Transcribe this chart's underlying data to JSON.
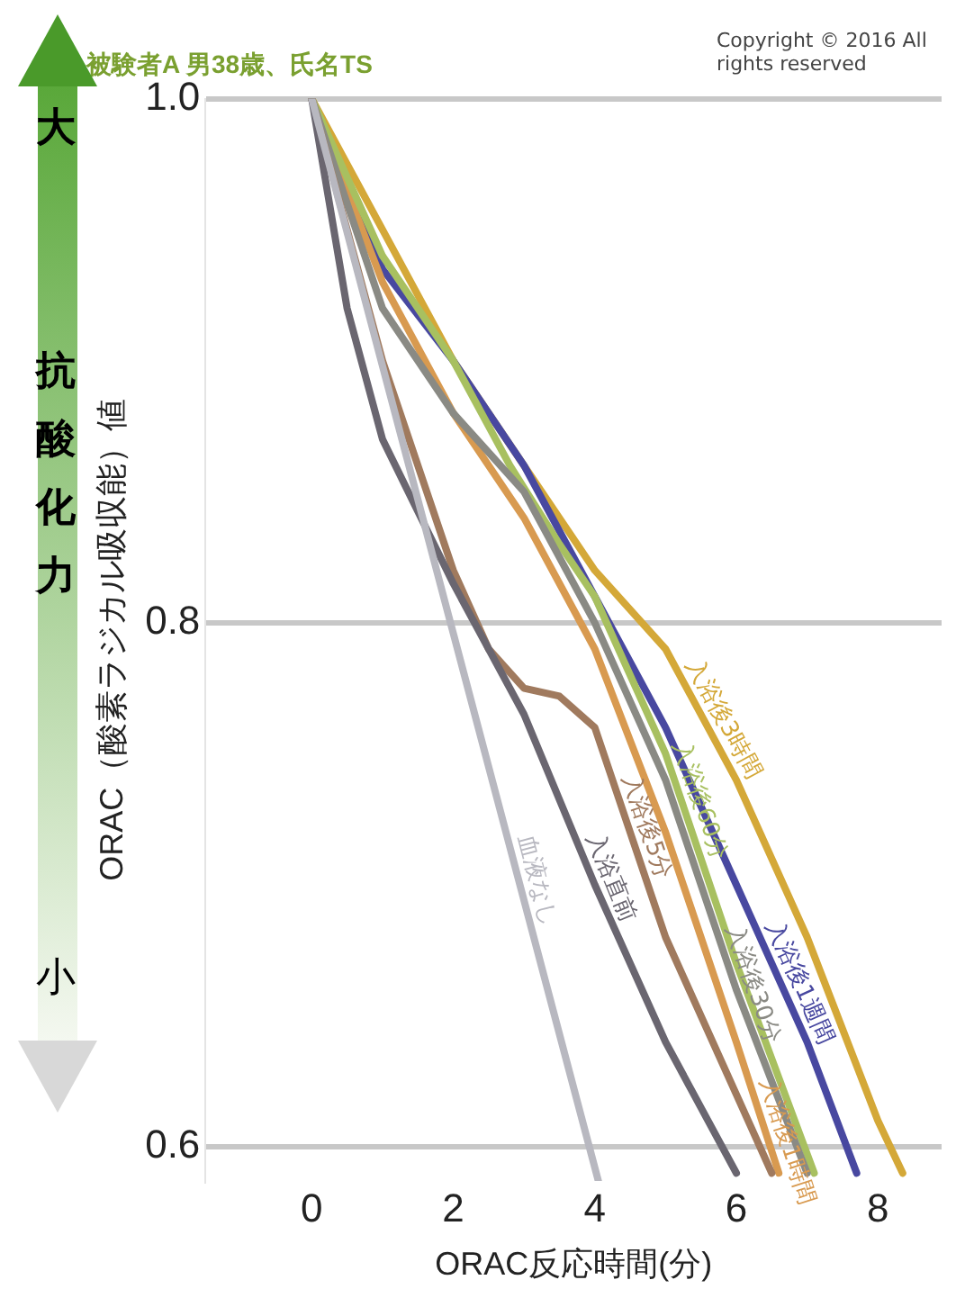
{
  "chart_data": {
    "type": "line",
    "title": "被験者A 男38歳、氏名TS",
    "xlabel": "ORAC反応時間(分)",
    "ylabel": "ORAC（酸素ラジカル吸収能）値",
    "annotations": [
      "Copyright © 2016 All rights reserved",
      "大",
      "抗酸化力",
      "小"
    ],
    "xlim": [
      -1.5,
      8.9
    ],
    "xticks": [
      0,
      2,
      4,
      6,
      8
    ],
    "ylim": [
      0.587,
      1.0
    ],
    "yticks": [
      {
        "value": 0.6,
        "label": "0.6"
      },
      {
        "value": 0.8,
        "label": "0.8"
      },
      {
        "value": 1,
        "label": "1.0"
      }
    ],
    "grid": "y",
    "legend": false,
    "marker": "none",
    "line_style": "solid",
    "series": [
      {
        "name": "血液なし",
        "color": "#b8b8c0",
        "x": [
          0,
          2,
          4.05
        ],
        "values": [
          1.0,
          0.796,
          0.587
        ]
      },
      {
        "name": "入浴直前",
        "color": "#6a6670",
        "x": [
          0,
          0.5,
          1,
          2,
          3,
          4,
          5,
          6
        ],
        "values": [
          1.0,
          0.92,
          0.87,
          0.815,
          0.765,
          0.7,
          0.64,
          0.59
        ]
      },
      {
        "name": "入浴後5分",
        "color": "#a07a5e",
        "x": [
          0,
          1,
          2,
          2.5,
          3,
          3.5,
          4,
          5,
          6,
          6.5
        ],
        "values": [
          1.0,
          0.9,
          0.82,
          0.79,
          0.775,
          0.772,
          0.76,
          0.68,
          0.62,
          0.59
        ]
      },
      {
        "name": "入浴後30分",
        "color": "#8a8a84",
        "x": [
          0,
          1,
          2,
          3,
          4,
          5,
          6,
          7
        ],
        "values": [
          1.0,
          0.92,
          0.88,
          0.85,
          0.8,
          0.74,
          0.66,
          0.59
        ]
      },
      {
        "name": "入浴後60分",
        "color": "#a8c060",
        "x": [
          0,
          1,
          2,
          2.8,
          3.5,
          4,
          5,
          6,
          7.1
        ],
        "values": [
          1.0,
          0.94,
          0.9,
          0.86,
          0.83,
          0.81,
          0.75,
          0.67,
          0.59
        ]
      },
      {
        "name": "入浴後1時間",
        "color": "#d89a50",
        "x": [
          0,
          1,
          2,
          3,
          4,
          5,
          6,
          6.6
        ],
        "values": [
          1.0,
          0.93,
          0.88,
          0.84,
          0.79,
          0.72,
          0.64,
          0.59
        ]
      },
      {
        "name": "入浴後1週間",
        "color": "#4848a0",
        "x": [
          0,
          1,
          2,
          3,
          4,
          5,
          6,
          7,
          7.7
        ],
        "values": [
          1.0,
          0.935,
          0.9,
          0.86,
          0.81,
          0.76,
          0.7,
          0.64,
          0.59
        ]
      },
      {
        "name": "入浴後3時間",
        "color": "#d4a838",
        "x": [
          0,
          1,
          2,
          3,
          4,
          5,
          6,
          7,
          8,
          8.35
        ],
        "values": [
          1.0,
          0.95,
          0.9,
          0.86,
          0.82,
          0.79,
          0.74,
          0.68,
          0.61,
          0.59
        ]
      }
    ]
  }
}
